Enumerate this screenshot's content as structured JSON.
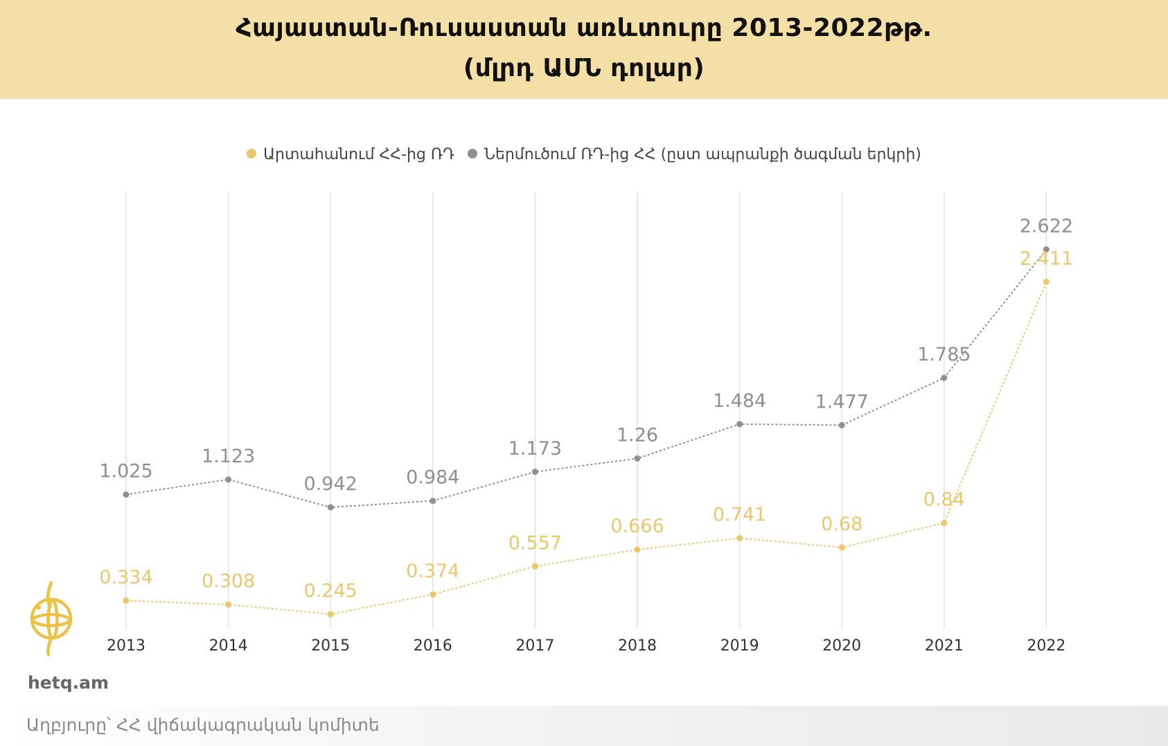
{
  "header": {
    "title_line1": "Հայաստան-Ռուսաստան առևտուրը 2013-2022թթ.",
    "title_line2": "(մլրդ ԱՄՆ դոլար)"
  },
  "branding": {
    "site": "hetq.am",
    "source": "Աղբյուրը՝ ՀՀ վիճակագրական կոմիտե"
  },
  "colors": {
    "header_bg": "#f4dfa7",
    "export_series": "#ecc66b",
    "import_series": "#8f8f8f",
    "gridline": "#e2e2e2",
    "axis_label": "#333333"
  },
  "chart_data": {
    "type": "line",
    "title": "Հայաստան-Ռուսաստան առևտուրը 2013-2022թթ. (մլրդ ԱՄՆ դոլար)",
    "categories": [
      "2013",
      "2014",
      "2015",
      "2016",
      "2017",
      "2018",
      "2019",
      "2020",
      "2021",
      "2022"
    ],
    "series": [
      {
        "name": "Արտահանում ՀՀ-ից ՌԴ",
        "color": "#ecc66b",
        "values": [
          0.334,
          0.308,
          0.245,
          0.374,
          0.557,
          0.666,
          0.741,
          0.68,
          0.84,
          2.411
        ],
        "labels": [
          "0.334",
          "0.308",
          "0.245",
          "0.374",
          "0.557",
          "0.666",
          "0.741",
          "0.68",
          "0.84",
          "2.411"
        ]
      },
      {
        "name": "Ներմուծում ՌԴ-ից ՀՀ (ըստ ապրանքի ծագման երկրի)",
        "color": "#8f8f8f",
        "values": [
          1.025,
          1.123,
          0.942,
          0.984,
          1.173,
          1.26,
          1.484,
          1.477,
          1.785,
          2.622
        ],
        "labels": [
          "1.025",
          "1.123",
          "0.942",
          "0.984",
          "1.173",
          "1.26",
          "1.484",
          "1.477",
          "1.785",
          "2.622"
        ]
      }
    ],
    "ylim": [
      0.18,
      2.8
    ],
    "grid": "vertical",
    "legend_position": "top-center",
    "line_style": "dotted"
  }
}
